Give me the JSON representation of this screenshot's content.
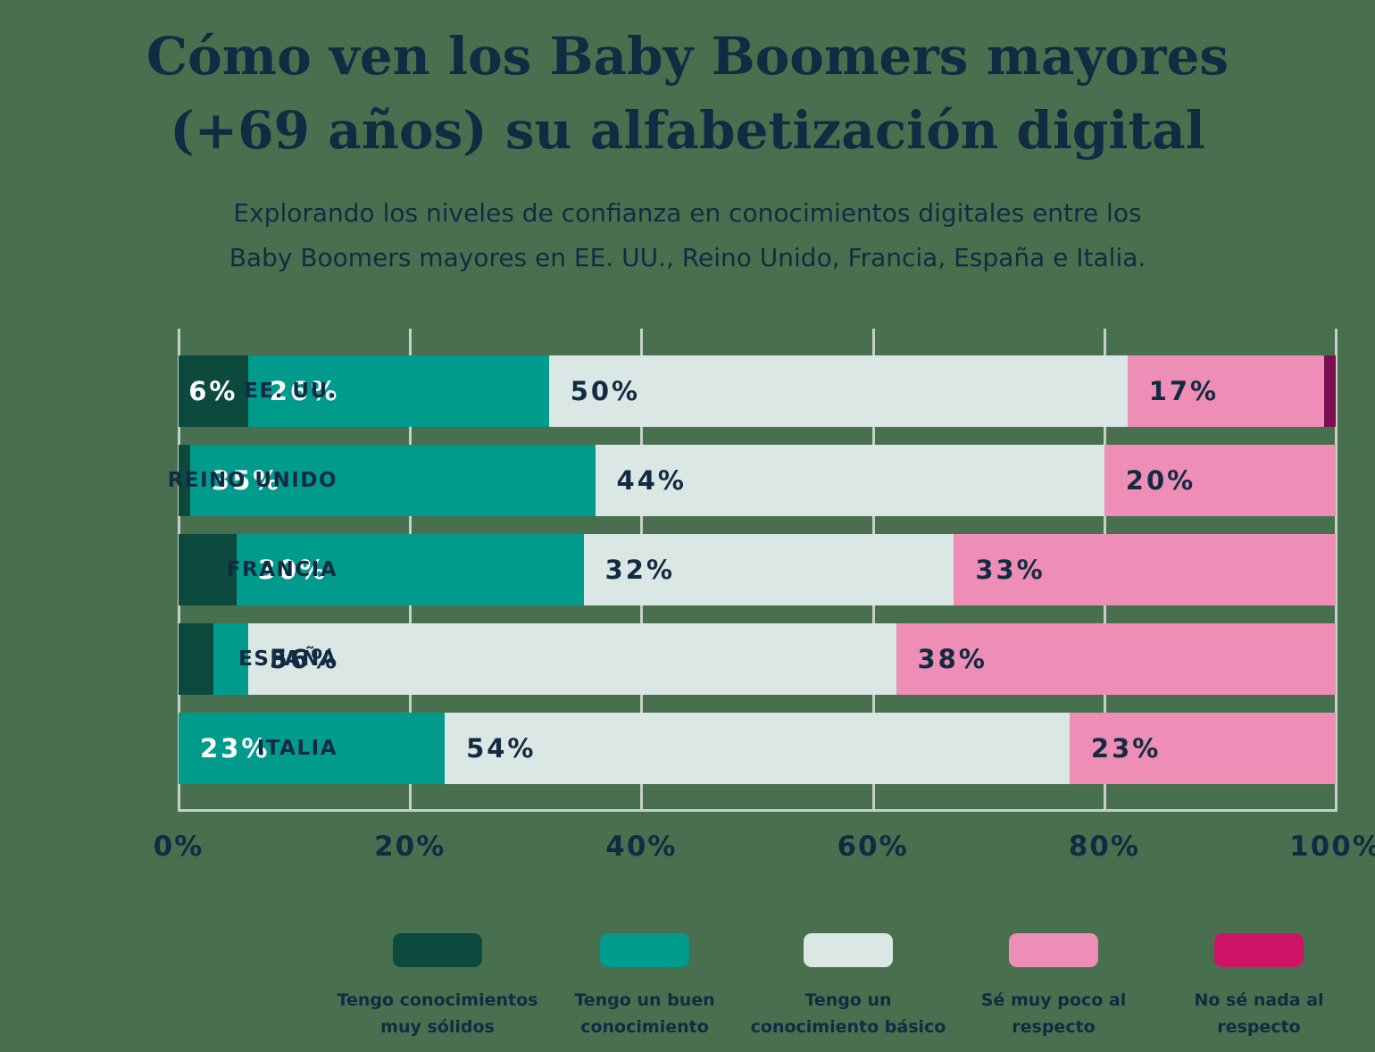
{
  "page": {
    "background_color": "#48704F",
    "text_color": "#132B42",
    "grid_color": "#C7D0C8"
  },
  "title": {
    "line1": "Cómo ven los Baby Boomers mayores",
    "line2": "(+69 años) su alfabetización digital"
  },
  "subtitle": {
    "line1": "Explorando los niveles de confianza en conocimientos digitales entre los",
    "line2": "Baby Boomers mayores en EE. UU., Reino Unido, Francia, España e Italia."
  },
  "chart_data": {
    "type": "bar",
    "orientation": "horizontal",
    "stacked": true,
    "unit": "%",
    "xlim": [
      0,
      100
    ],
    "x_ticks": [
      "0%",
      "20%",
      "40%",
      "60%",
      "80%",
      "100%"
    ],
    "grid": true,
    "min_label_pct": 6,
    "categories": [
      "EE. UU.",
      "REINO UNIDO",
      "FRANCIA",
      "ESPAÑA",
      "ITALIA"
    ],
    "series": [
      {
        "name": "Tengo conocimientos muy sólidos",
        "bar_color": "#0B4A3C",
        "legend_color": "#0B4A3C",
        "label_color": "#FFFFFF",
        "values": [
          6,
          1,
          5,
          3,
          0
        ]
      },
      {
        "name": "Tengo un buen conocimiento",
        "bar_color": "#009B8D",
        "legend_color": "#009B8D",
        "label_color": "#FFFFFF",
        "values": [
          26,
          35,
          30,
          3,
          23
        ]
      },
      {
        "name": "Tengo un conocimiento básico",
        "bar_color": "#DAE7E4",
        "legend_color": "#DAE7E4",
        "label_color": "#132B42",
        "values": [
          50,
          44,
          32,
          56,
          54
        ]
      },
      {
        "name": "Sé muy poco al respecto",
        "bar_color": "#EE8DB6",
        "legend_color": "#EE8DB6",
        "label_color": "#132B42",
        "values": [
          17,
          20,
          33,
          38,
          23
        ]
      },
      {
        "name": "No sé nada al respecto",
        "bar_color": "#7B0E52",
        "legend_color": "#CE1467",
        "label_color": "#FFFFFF",
        "values": [
          1,
          0,
          0,
          0,
          0
        ]
      }
    ]
  },
  "legend": {
    "items": [
      {
        "label_lines": [
          "Tengo conocimientos",
          "muy sólidos"
        ],
        "color": "#0B4A3C"
      },
      {
        "label_lines": [
          "Tengo un buen",
          "conocimiento"
        ],
        "color": "#009B8D"
      },
      {
        "label_lines": [
          "Tengo un",
          "conocimiento básico"
        ],
        "color": "#DAE7E4"
      },
      {
        "label_lines": [
          "Sé muy poco al",
          "respecto"
        ],
        "color": "#EE8DB6"
      },
      {
        "label_lines": [
          "No sé nada al",
          "respecto"
        ],
        "color": "#CE1467"
      }
    ]
  }
}
